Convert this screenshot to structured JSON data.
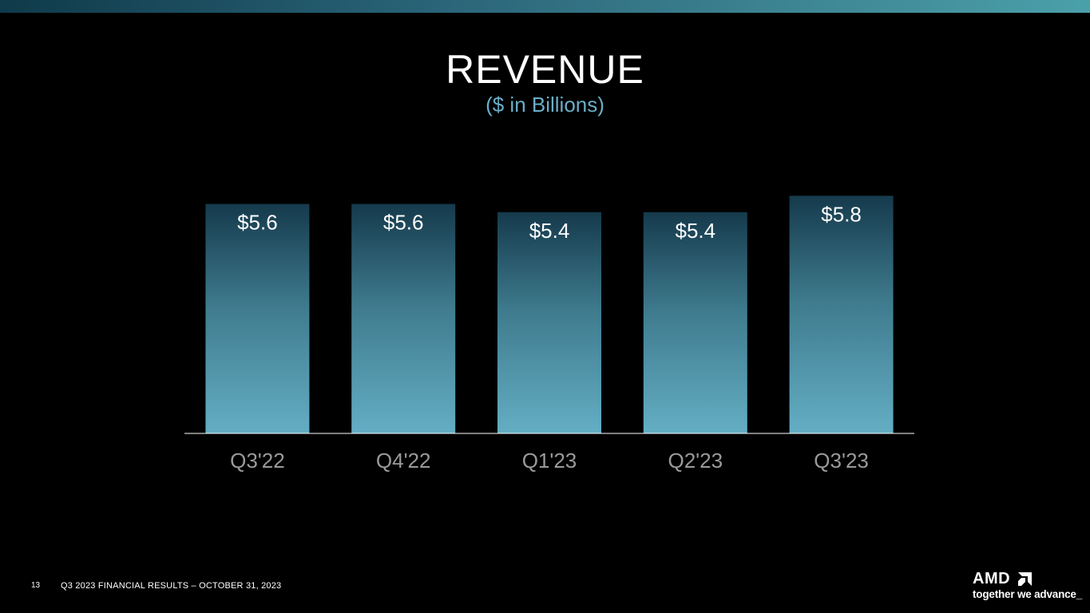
{
  "slide": {
    "page_number": "13",
    "footer_text": "Q3 2023 FINANCIAL RESULTS – OCTOBER 31, 2023"
  },
  "logo": {
    "wordmark": "AMD",
    "tagline": "together we advance_"
  },
  "colors": {
    "background": "#000000",
    "bar_top": "#153a4c",
    "bar_bottom": "#64aec4",
    "subtitle": "#6aaec8",
    "axis_label": "#9a9a9a",
    "baseline": "#ffffff"
  },
  "chart_data": {
    "type": "bar",
    "title": "REVENUE",
    "subtitle": "($ in Billions)",
    "categories": [
      "Q3'22",
      "Q4'22",
      "Q1'23",
      "Q2'23",
      "Q3'23"
    ],
    "values": [
      5.6,
      5.6,
      5.4,
      5.4,
      5.8
    ],
    "data_labels": [
      "$5.6",
      "$5.6",
      "$5.4",
      "$5.4",
      "$5.8"
    ],
    "xlabel": "",
    "ylabel": "",
    "ylim": [
      0,
      6.0
    ],
    "grid": false,
    "legend": "none"
  }
}
